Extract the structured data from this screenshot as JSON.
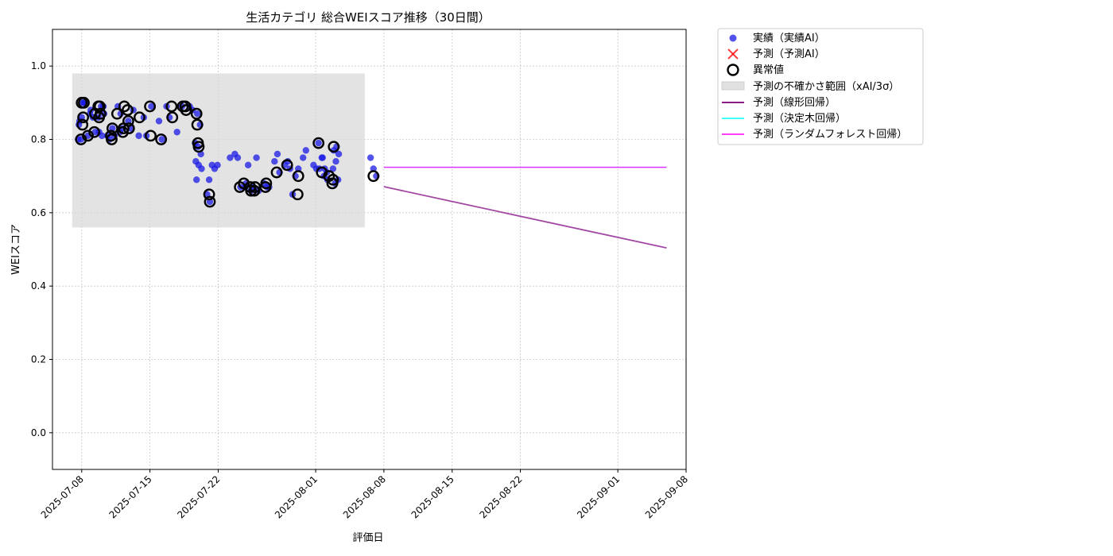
{
  "chart_data": {
    "type": "scatter",
    "title": "生活カテゴリ 総合WEIスコア推移（30日間）",
    "xlabel": "評価日",
    "ylabel": "WEIスコア",
    "xlim": [
      "2025-07-05",
      "2025-09-08"
    ],
    "ylim": [
      -0.1,
      1.1
    ],
    "x_ticks": [
      "2025-07-08",
      "2025-07-15",
      "2025-07-22",
      "2025-08-01",
      "2025-08-08",
      "2025-08-15",
      "2025-08-22",
      "2025-09-01",
      "2025-09-08"
    ],
    "y_ticks": [
      0.0,
      0.2,
      0.4,
      0.6,
      0.8,
      1.0
    ],
    "grid": true,
    "legend_position": "outside-upper-right",
    "colors": {
      "actual": "#1a1ae6",
      "predicted_marker": "#ff0000",
      "outlier_ring": "#000000",
      "uncertainty_band": "#d9d9d9",
      "linear": "#8b1a8b",
      "decision_tree": "#00ffff",
      "random_forest": "#ff00ff"
    },
    "legend": [
      {
        "key": "actual",
        "label": "実績（実績AI）",
        "marker": "circle"
      },
      {
        "key": "predicted",
        "label": "予測（予測AI）",
        "marker": "x"
      },
      {
        "key": "outlier",
        "label": "異常値",
        "marker": "ring"
      },
      {
        "key": "band",
        "label": "予測の不確かさ範囲（xAI/3σ）",
        "marker": "patch"
      },
      {
        "key": "linear",
        "label": "予測（線形回帰）",
        "marker": "line"
      },
      {
        "key": "tree",
        "label": "予測（決定木回帰）",
        "marker": "line"
      },
      {
        "key": "forest",
        "label": "予測（ランダムフォレスト回帰）",
        "marker": "line"
      }
    ],
    "uncertainty_band": {
      "x_start": "2025-07-08",
      "x_end": "2025-08-08",
      "y_low": 0.56,
      "y_high": 0.98
    },
    "series": [
      {
        "name": "実績（実績AI）",
        "kind": "scatter",
        "points": [
          [
            "2025-07-08",
            0.8
          ],
          [
            "2025-07-08",
            0.8
          ],
          [
            "2025-07-08",
            0.9
          ],
          [
            "2025-07-08",
            0.84
          ],
          [
            "2025-07-08",
            0.86
          ],
          [
            "2025-07-08",
            0.9
          ],
          [
            "2025-07-08",
            0.85
          ],
          [
            "2025-07-08",
            0.9
          ],
          [
            "2025-07-09",
            0.82
          ],
          [
            "2025-07-09",
            0.87
          ],
          [
            "2025-07-09",
            0.86
          ],
          [
            "2025-07-09",
            0.81
          ],
          [
            "2025-07-09",
            0.88
          ],
          [
            "2025-07-10",
            0.89
          ],
          [
            "2025-07-10",
            0.86
          ],
          [
            "2025-07-10",
            0.89
          ],
          [
            "2025-07-10",
            0.87
          ],
          [
            "2025-07-10",
            0.82
          ],
          [
            "2025-07-10",
            0.81
          ],
          [
            "2025-07-11",
            0.81
          ],
          [
            "2025-07-11",
            0.8
          ],
          [
            "2025-07-11",
            0.83
          ],
          [
            "2025-07-11",
            0.81
          ],
          [
            "2025-07-12",
            0.82
          ],
          [
            "2025-07-12",
            0.83
          ],
          [
            "2025-07-12",
            0.89
          ],
          [
            "2025-07-12",
            0.87
          ],
          [
            "2025-07-13",
            0.88
          ],
          [
            "2025-07-13",
            0.85
          ],
          [
            "2025-07-13",
            0.83
          ],
          [
            "2025-07-14",
            0.86
          ],
          [
            "2025-07-14",
            0.81
          ],
          [
            "2025-07-15",
            0.89
          ],
          [
            "2025-07-15",
            0.81
          ],
          [
            "2025-07-16",
            0.85
          ],
          [
            "2025-07-16",
            0.8
          ],
          [
            "2025-07-17",
            0.89
          ],
          [
            "2025-07-17",
            0.86
          ],
          [
            "2025-07-18",
            0.89
          ],
          [
            "2025-07-18",
            0.82
          ],
          [
            "2025-07-19",
            0.89
          ],
          [
            "2025-07-19",
            0.88
          ],
          [
            "2025-07-20",
            0.87
          ],
          [
            "2025-07-20",
            0.84
          ],
          [
            "2025-07-20",
            0.79
          ],
          [
            "2025-07-20",
            0.78
          ],
          [
            "2025-07-20",
            0.76
          ],
          [
            "2025-07-20",
            0.74
          ],
          [
            "2025-07-20",
            0.73
          ],
          [
            "2025-07-20",
            0.72
          ],
          [
            "2025-07-20",
            0.69
          ],
          [
            "2025-07-21",
            0.69
          ],
          [
            "2025-07-21",
            0.73
          ],
          [
            "2025-07-21",
            0.65
          ],
          [
            "2025-07-21",
            0.63
          ],
          [
            "2025-07-22",
            0.72
          ],
          [
            "2025-07-22",
            0.73
          ],
          [
            "2025-07-23",
            0.75
          ],
          [
            "2025-07-24",
            0.76
          ],
          [
            "2025-07-24",
            0.75
          ],
          [
            "2025-07-24",
            0.67
          ],
          [
            "2025-07-25",
            0.67
          ],
          [
            "2025-07-25",
            0.73
          ],
          [
            "2025-07-25",
            0.66
          ],
          [
            "2025-07-25",
            0.68
          ],
          [
            "2025-07-26",
            0.66
          ],
          [
            "2025-07-26",
            0.67
          ],
          [
            "2025-07-26",
            0.75
          ],
          [
            "2025-07-27",
            0.67
          ],
          [
            "2025-07-27",
            0.68
          ],
          [
            "2025-07-27",
            0.67
          ],
          [
            "2025-07-28",
            0.71
          ],
          [
            "2025-07-28",
            0.74
          ],
          [
            "2025-07-28",
            0.76
          ],
          [
            "2025-07-29",
            0.72
          ],
          [
            "2025-07-29",
            0.73
          ],
          [
            "2025-07-29",
            0.74
          ],
          [
            "2025-07-30",
            0.65
          ],
          [
            "2025-07-30",
            0.7
          ],
          [
            "2025-07-30",
            0.72
          ],
          [
            "2025-07-31",
            0.75
          ],
          [
            "2025-07-31",
            0.77
          ],
          [
            "2025-08-01",
            0.79
          ],
          [
            "2025-08-01",
            0.73
          ],
          [
            "2025-08-01",
            0.72
          ],
          [
            "2025-08-01",
            0.72
          ],
          [
            "2025-08-02",
            0.7
          ],
          [
            "2025-08-02",
            0.71
          ],
          [
            "2025-08-02",
            0.75
          ],
          [
            "2025-08-02",
            0.72
          ],
          [
            "2025-08-02",
            0.69
          ],
          [
            "2025-08-02",
            0.75
          ],
          [
            "2025-08-03",
            0.68
          ],
          [
            "2025-08-03",
            0.69
          ],
          [
            "2025-08-03",
            0.72
          ],
          [
            "2025-08-03",
            0.74
          ],
          [
            "2025-08-03",
            0.76
          ],
          [
            "2025-08-03",
            0.77
          ],
          [
            "2025-08-03",
            0.78
          ],
          [
            "2025-08-07",
            0.75
          ],
          [
            "2025-08-07",
            0.72
          ],
          [
            "2025-08-07",
            0.7
          ]
        ]
      },
      {
        "name": "異常値",
        "kind": "outlier",
        "points": [
          [
            "2025-07-08",
            0.8
          ],
          [
            "2025-07-08",
            0.9
          ],
          [
            "2025-07-08",
            0.84
          ],
          [
            "2025-07-08",
            0.86
          ],
          [
            "2025-07-08",
            0.9
          ],
          [
            "2025-07-09",
            0.82
          ],
          [
            "2025-07-09",
            0.87
          ],
          [
            "2025-07-09",
            0.81
          ],
          [
            "2025-07-10",
            0.89
          ],
          [
            "2025-07-10",
            0.86
          ],
          [
            "2025-07-10",
            0.89
          ],
          [
            "2025-07-10",
            0.87
          ],
          [
            "2025-07-11",
            0.81
          ],
          [
            "2025-07-11",
            0.8
          ],
          [
            "2025-07-11",
            0.83
          ],
          [
            "2025-07-12",
            0.82
          ],
          [
            "2025-07-12",
            0.83
          ],
          [
            "2025-07-12",
            0.89
          ],
          [
            "2025-07-12",
            0.87
          ],
          [
            "2025-07-13",
            0.88
          ],
          [
            "2025-07-13",
            0.85
          ],
          [
            "2025-07-13",
            0.83
          ],
          [
            "2025-07-14",
            0.86
          ],
          [
            "2025-07-15",
            0.89
          ],
          [
            "2025-07-15",
            0.81
          ],
          [
            "2025-07-16",
            0.8
          ],
          [
            "2025-07-17",
            0.89
          ],
          [
            "2025-07-17",
            0.86
          ],
          [
            "2025-07-18",
            0.89
          ],
          [
            "2025-07-19",
            0.89
          ],
          [
            "2025-07-19",
            0.88
          ],
          [
            "2025-07-20",
            0.87
          ],
          [
            "2025-07-20",
            0.84
          ],
          [
            "2025-07-20",
            0.79
          ],
          [
            "2025-07-20",
            0.78
          ],
          [
            "2025-07-21",
            0.65
          ],
          [
            "2025-07-21",
            0.63
          ],
          [
            "2025-07-24",
            0.67
          ],
          [
            "2025-07-25",
            0.67
          ],
          [
            "2025-07-25",
            0.66
          ],
          [
            "2025-07-25",
            0.68
          ],
          [
            "2025-07-26",
            0.66
          ],
          [
            "2025-07-26",
            0.67
          ],
          [
            "2025-07-27",
            0.67
          ],
          [
            "2025-07-27",
            0.68
          ],
          [
            "2025-07-28",
            0.71
          ],
          [
            "2025-07-29",
            0.73
          ],
          [
            "2025-07-30",
            0.65
          ],
          [
            "2025-07-30",
            0.7
          ],
          [
            "2025-08-01",
            0.79
          ],
          [
            "2025-08-02",
            0.7
          ],
          [
            "2025-08-02",
            0.71
          ],
          [
            "2025-08-03",
            0.68
          ],
          [
            "2025-08-03",
            0.69
          ],
          [
            "2025-08-03",
            0.78
          ],
          [
            "2025-08-07",
            0.7
          ]
        ]
      },
      {
        "name": "予測（線形回帰）",
        "kind": "line",
        "points": [
          [
            "2025-08-08",
            0.671
          ],
          [
            "2025-09-06",
            0.504
          ]
        ]
      },
      {
        "name": "予測（決定木回帰）",
        "kind": "line",
        "points": [
          [
            "2025-08-08",
            0.724
          ],
          [
            "2025-09-06",
            0.724
          ]
        ]
      },
      {
        "name": "予測（ランダムフォレスト回帰）",
        "kind": "line",
        "points": [
          [
            "2025-08-08",
            0.724
          ],
          [
            "2025-09-06",
            0.724
          ]
        ]
      }
    ]
  }
}
